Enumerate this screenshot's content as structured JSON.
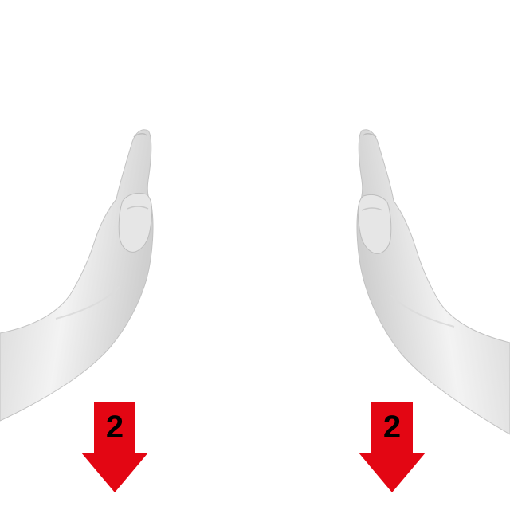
{
  "arrows": [
    {
      "label": "2",
      "direction": "down",
      "color": "#e30613"
    },
    {
      "label": "2",
      "direction": "down",
      "color": "#e30613"
    }
  ],
  "colors": {
    "background": "#ffffff",
    "hand_light": "#f4f4f4",
    "hand_mid": "#d9d9d9",
    "hand_shadow": "#bdbdbd"
  },
  "icons": {
    "left_hand": "left-hand-icon",
    "right_hand": "right-hand-icon",
    "arrow": "down-arrow-icon"
  }
}
